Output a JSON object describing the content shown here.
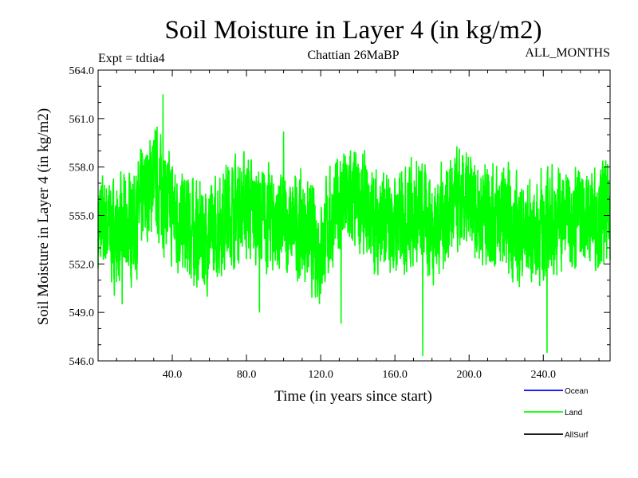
{
  "chart_data": {
    "type": "line",
    "title": "Soil Moisture in Layer 4 (in kg/m2)",
    "subtitle_left": "Expt = tdtia4",
    "subtitle_center": "Chattian  26MaBP",
    "subtitle_right": "ALL_MONTHS",
    "xlabel": "Time (in years since start)",
    "ylabel": "Soil Moisture in Layer 4 (in kg/m2)",
    "xlim": [
      0,
      276
    ],
    "ylim": [
      546.0,
      564.0
    ],
    "xticks": [
      40,
      80,
      120,
      160,
      200,
      240
    ],
    "xtick_labels": [
      "40.0",
      "80.0",
      "120.0",
      "160.0",
      "200.0",
      "240.0"
    ],
    "yticks": [
      546,
      549,
      552,
      555,
      558,
      561,
      564
    ],
    "ytick_labels": [
      "546.0",
      "549.0",
      "552.0",
      "555.0",
      "558.0",
      "561.0",
      "564.0"
    ],
    "legend": [
      {
        "name": "Ocean",
        "color": "#0000ff"
      },
      {
        "name": "Land",
        "color": "#00ff00"
      },
      {
        "name": "AllSurf",
        "color": "#000000"
      }
    ],
    "series": [
      {
        "name": "Land",
        "color": "#00ff00",
        "x_start": 0,
        "x_step": 10,
        "mean": 554.7,
        "points_per_year": 12,
        "noise_amplitude": 2.2,
        "values": [
          554.5,
          553.8,
          554.6,
          557.5,
          555.2,
          554.0,
          553.5,
          555.3,
          555.6,
          554.8,
          554.4,
          554.2,
          553.0,
          555.9,
          555.8,
          554.6,
          554.3,
          555.3,
          554.4,
          555.5,
          555.7,
          555.2,
          554.6,
          553.8,
          554.3,
          554.9,
          555.1,
          555.0
        ],
        "extremes": [
          {
            "x": 35,
            "y": 562.5
          },
          {
            "x": 100,
            "y": 560.2
          },
          {
            "x": 175,
            "y": 546.3
          },
          {
            "x": 242,
            "y": 546.5
          },
          {
            "x": 13,
            "y": 549.5
          },
          {
            "x": 87,
            "y": 549.0
          },
          {
            "x": 131,
            "y": 548.3
          }
        ]
      }
    ]
  }
}
